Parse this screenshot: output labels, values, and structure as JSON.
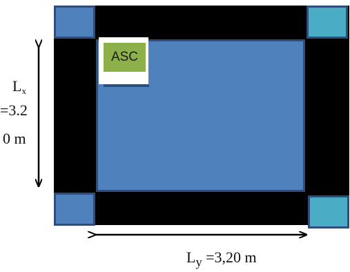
{
  "diagram": {
    "room_tag": "ASC",
    "lx_symbol": "L",
    "lx_subscript": "x",
    "lx_value_line1": "=3.2",
    "lx_value_line2": "0 m",
    "ly_symbol": "L",
    "ly_subscript": "y",
    "ly_value": " =3,20 m"
  },
  "colors": {
    "beam": "#000000",
    "slab": "#4f81bd",
    "column_left": "#4f81bd",
    "column_right": "#4bacc6",
    "tag": "#8db04a"
  }
}
